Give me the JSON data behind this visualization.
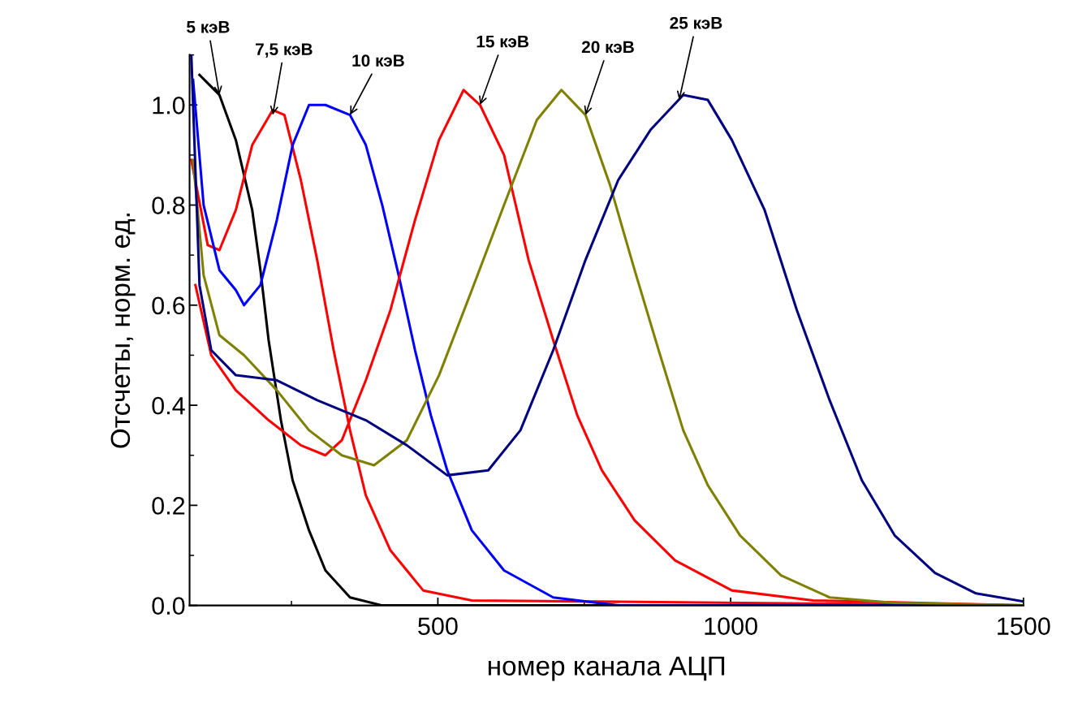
{
  "chart_data": {
    "type": "line",
    "xlabel": "номер канала АЦП",
    "ylabel": "Отсчеты, норм. ед.",
    "xlim": [
      76,
      1500
    ],
    "xticks": [
      500,
      1000,
      1500
    ],
    "ylim": [
      0,
      1.1
    ],
    "yticks": [
      {
        "value": 0,
        "label": "0.0"
      },
      {
        "value": 0.2,
        "label": "0.2"
      },
      {
        "value": 0.4,
        "label": "0.4"
      },
      {
        "value": 0.6,
        "label": "0.6"
      },
      {
        "value": 0.8,
        "label": "0.8"
      },
      {
        "value": 1.0,
        "label": "1.0"
      }
    ],
    "grid": false,
    "marker": "none",
    "line_style": "solid",
    "series": [
      {
        "color": "#000000",
        "x": [
          93,
          127,
          155,
          183,
          197,
          211,
          232,
          252,
          280,
          308,
          350,
          405,
          1500
        ],
        "values": [
          1.06,
          1.02,
          0.93,
          0.79,
          0.67,
          0.53,
          0.37,
          0.25,
          0.15,
          0.07,
          0.016,
          0,
          0
        ]
      },
      {
        "color": "#ff0000",
        "x": [
          79,
          107,
          127,
          155,
          183,
          218,
          238,
          266,
          294,
          322,
          350,
          377,
          419,
          475,
          558,
          1500
        ],
        "values": [
          0.89,
          0.72,
          0.71,
          0.79,
          0.92,
          0.99,
          0.98,
          0.85,
          0.69,
          0.51,
          0.35,
          0.22,
          0.11,
          0.03,
          0.01,
          0
        ]
      },
      {
        "color": "#0000ff",
        "x": [
          82,
          100,
          127,
          155,
          169,
          197,
          225,
          252,
          280,
          308,
          350,
          377,
          405,
          433,
          461,
          488,
          516,
          558,
          613,
          697,
          808,
          1500
        ],
        "values": [
          1.05,
          0.8,
          0.67,
          0.63,
          0.6,
          0.64,
          0.77,
          0.92,
          1.0,
          1.0,
          0.98,
          0.92,
          0.8,
          0.66,
          0.51,
          0.38,
          0.27,
          0.15,
          0.07,
          0.016,
          0,
          0
        ]
      },
      {
        "color": "#ff0000",
        "x": [
          86,
          113,
          155,
          211,
          266,
          308,
          336,
          377,
          419,
          461,
          502,
          544,
          572,
          613,
          655,
          697,
          738,
          780,
          836,
          905,
          1002,
          1141,
          1500
        ],
        "values": [
          0.64,
          0.5,
          0.43,
          0.37,
          0.32,
          0.3,
          0.33,
          0.45,
          0.59,
          0.77,
          0.93,
          1.03,
          1.0,
          0.9,
          0.69,
          0.53,
          0.38,
          0.27,
          0.17,
          0.09,
          0.03,
          0.01,
          0
        ]
      },
      {
        "color": "#808000",
        "x": [
          82,
          100,
          127,
          169,
          225,
          280,
          336,
          391,
          447,
          502,
          558,
          613,
          669,
          711,
          752,
          794,
          836,
          877,
          919,
          961,
          1016,
          1086,
          1169,
          1280,
          1500
        ],
        "values": [
          0.89,
          0.66,
          0.54,
          0.5,
          0.43,
          0.35,
          0.3,
          0.28,
          0.33,
          0.46,
          0.63,
          0.8,
          0.97,
          1.03,
          0.98,
          0.84,
          0.67,
          0.51,
          0.35,
          0.24,
          0.14,
          0.06,
          0.016,
          0.005,
          0
        ]
      },
      {
        "color": "#000080",
        "x": [
          79,
          93,
          113,
          155,
          225,
          294,
          377,
          447,
          516,
          586,
          641,
          697,
          752,
          808,
          863,
          919,
          961,
          1002,
          1058,
          1113,
          1169,
          1224,
          1280,
          1349,
          1419,
          1500
        ],
        "values": [
          1.1,
          0.64,
          0.51,
          0.46,
          0.45,
          0.41,
          0.37,
          0.32,
          0.26,
          0.27,
          0.35,
          0.51,
          0.69,
          0.85,
          0.95,
          1.02,
          1.01,
          0.93,
          0.79,
          0.59,
          0.41,
          0.25,
          0.14,
          0.065,
          0.024,
          0.008
        ]
      }
    ],
    "annotations": [
      {
        "text": "5 кэВ",
        "x": 127,
        "y": 1.02
      },
      {
        "text": "7,5 кэВ",
        "x": 218,
        "y": 0.98
      },
      {
        "text": "10 кэВ",
        "x": 350,
        "y": 0.98
      },
      {
        "text": "15 кэВ",
        "x": 572,
        "y": 1.0
      },
      {
        "text": "20 кэВ",
        "x": 752,
        "y": 0.98
      },
      {
        "text": "25 кэВ",
        "x": 912,
        "y": 1.01
      }
    ]
  }
}
